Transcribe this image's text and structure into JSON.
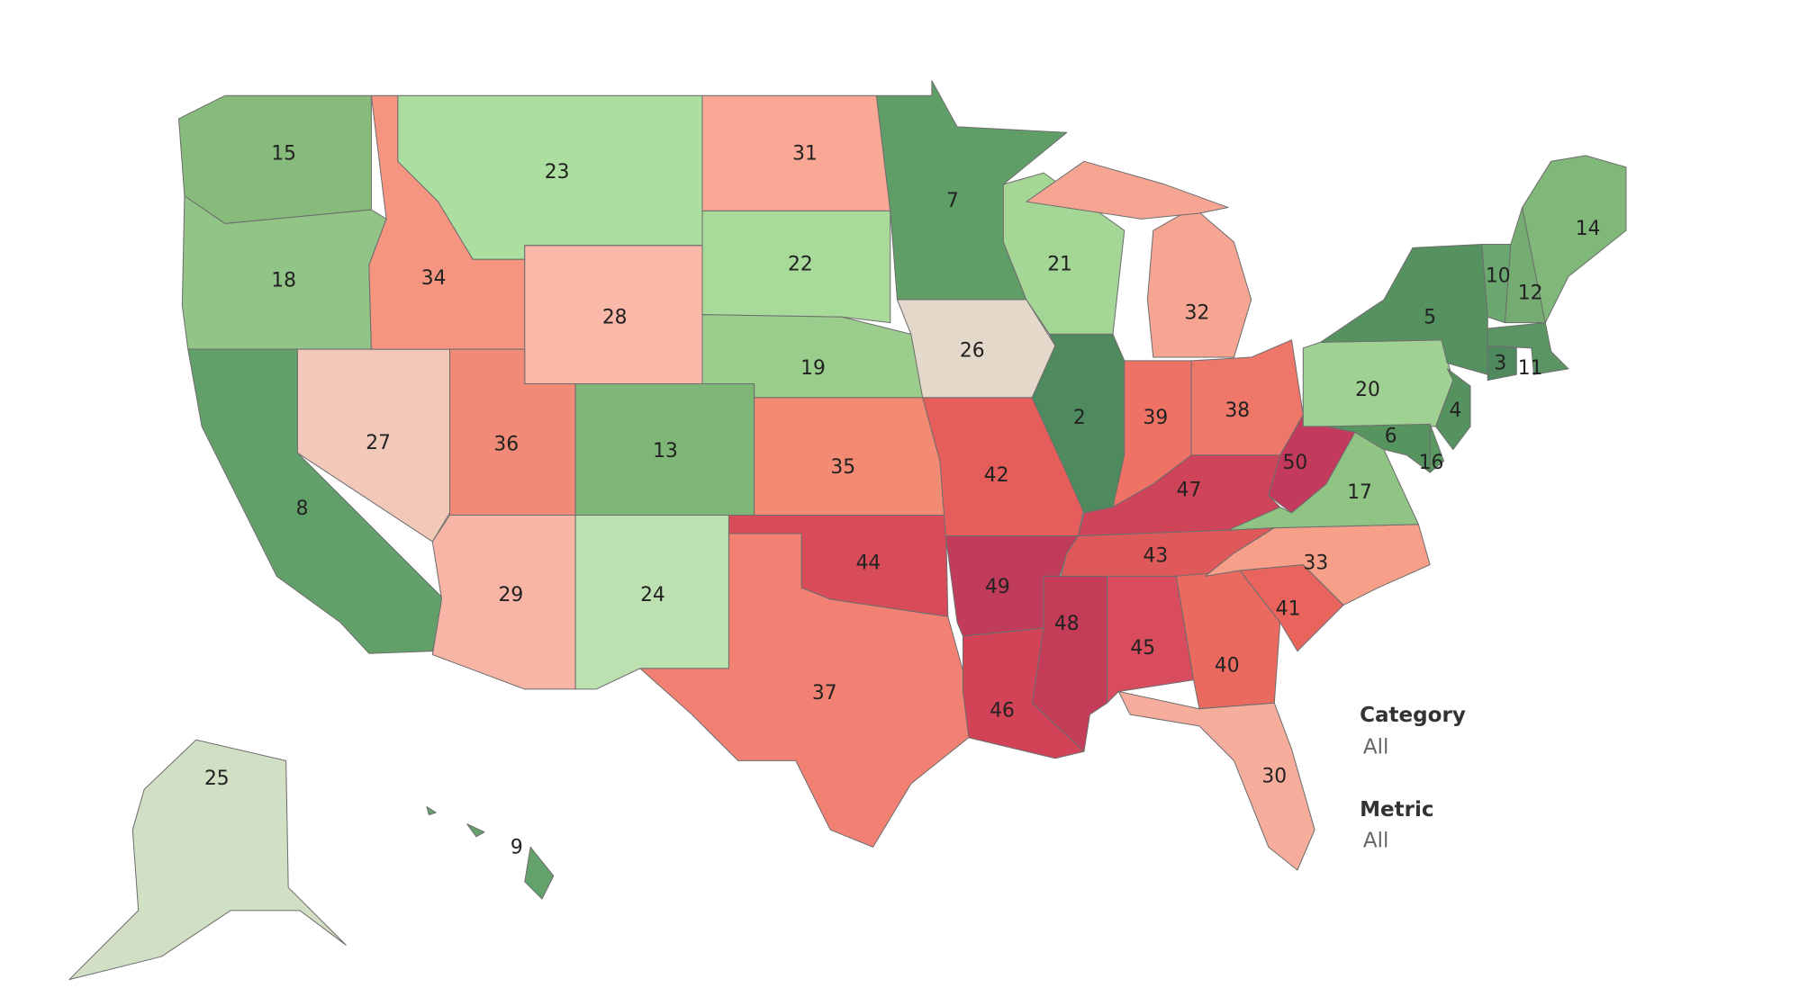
{
  "map": {
    "values": [
      15,
      18,
      8,
      27,
      34,
      23,
      28,
      36,
      13,
      29,
      24,
      31,
      22,
      19,
      35,
      44,
      37,
      7,
      26,
      42,
      49,
      46,
      21,
      2,
      32,
      39,
      38,
      47,
      50,
      43,
      48,
      45,
      40,
      30,
      41,
      33,
      17,
      20,
      5,
      10,
      12,
      14,
      11,
      3,
      4,
      6,
      16,
      25,
      9
    ],
    "colors": [
      "#86bb7c",
      "#92c487",
      "#62a06a",
      "#f2c8b8",
      "#f6957f",
      "#acdea0",
      "#f9b8a8",
      "#f18a76",
      "#7db677",
      "#f8b4a5",
      "#bde0b0",
      "#f8a895",
      "#a8da9a",
      "#9bcd8c",
      "#f38b74",
      "#d84b58",
      "#f28173",
      "#5f9e67",
      "#e3d8c9",
      "#e55e5c",
      "#c13c5a",
      "#d34357",
      "#a4d796",
      "#4e8a5e",
      "#f7a593",
      "#ee7365",
      "#ef776a",
      "#d0445a",
      "#c33a5c",
      "#e0595a",
      "#c53c59",
      "#d84c5d",
      "#ea6a60",
      "#f7ad9b",
      "#e8645c",
      "#f79f88",
      "#8fc484",
      "#9fd292",
      "#55925f",
      "#6aa86f",
      "#74ac72",
      "#80b87a",
      "#5a9563",
      "#4f8a5f",
      "#55925f",
      "#569560",
      "#5a9a62",
      "#d1e0c4",
      "#64a26b"
    ]
  },
  "filters": [
    {
      "title": "Category",
      "value": "All"
    },
    {
      "title": "Metric",
      "value": "All"
    }
  ]
}
